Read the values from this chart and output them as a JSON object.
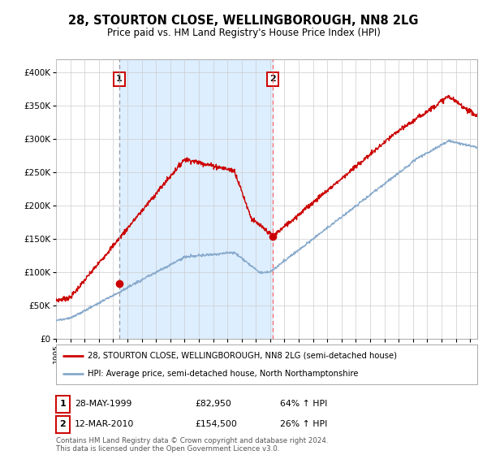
{
  "title_line1": "28, STOURTON CLOSE, WELLINGBOROUGH, NN8 2LG",
  "title_line2": "Price paid vs. HM Land Registry's House Price Index (HPI)",
  "legend_entry1": "28, STOURTON CLOSE, WELLINGBOROUGH, NN8 2LG (semi-detached house)",
  "legend_entry2": "HPI: Average price, semi-detached house, North Northamptonshire",
  "transaction1_date": "28-MAY-1999",
  "transaction1_price": "£82,950",
  "transaction1_hpi": "64% ↑ HPI",
  "transaction1_year": 1999.41,
  "transaction1_value": 82950,
  "transaction2_date": "12-MAR-2010",
  "transaction2_price": "£154,500",
  "transaction2_hpi": "26% ↑ HPI",
  "transaction2_year": 2010.19,
  "transaction2_value": 154500,
  "red_color": "#cc0000",
  "blue_color": "#88aacc",
  "shade_color": "#ddeeff",
  "dashed1_color": "#999999",
  "dashed2_color": "#ff6666",
  "background_color": "#ffffff",
  "grid_color": "#cccccc",
  "ylim": [
    0,
    420000
  ],
  "xlim_start": 1995.0,
  "xlim_end": 2024.5,
  "footer_text": "Contains HM Land Registry data © Crown copyright and database right 2024.\nThis data is licensed under the Open Government Licence v3.0."
}
